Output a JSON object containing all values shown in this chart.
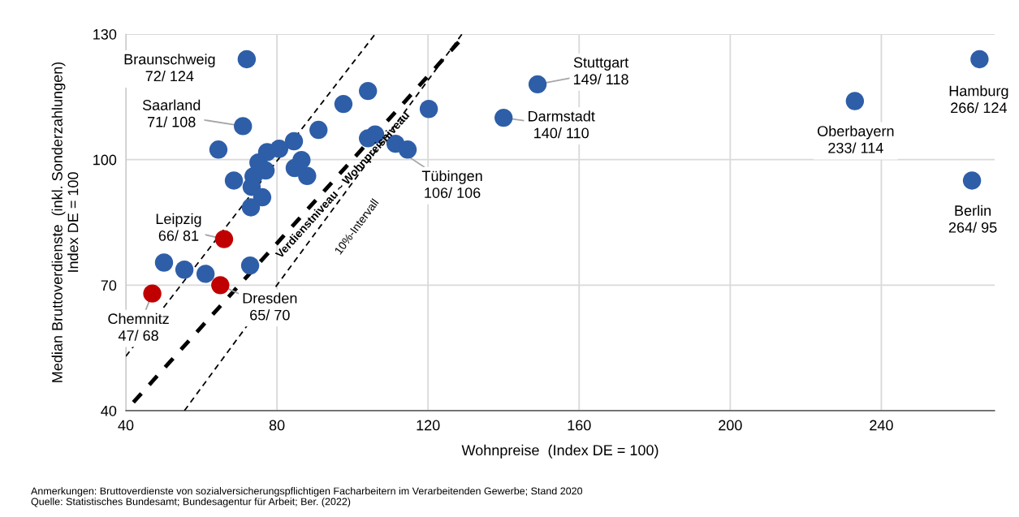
{
  "chart_data": {
    "type": "scatter",
    "xlabel": "Wohnpreise  (Index DE = 100)",
    "ylabel": "Median Bruttoverdienste  (inkl. Sonderzahlungen)\nIndex DE = 100",
    "xlim": [
      40,
      270
    ],
    "ylim": [
      40,
      130
    ],
    "xticks": [
      40,
      80,
      120,
      160,
      200,
      240
    ],
    "yticks": [
      40,
      70,
      100,
      130
    ],
    "grid": true,
    "marker": "circle",
    "series": [
      {
        "type": "scatter",
        "color": "#2e5ea8",
        "x": [
          72,
          71,
          106,
          149,
          140,
          233,
          266,
          264,
          104.1,
          97.6,
          120.2,
          91.0,
          84.5,
          80.6,
          77.4,
          64.5,
          104.1,
          111.4,
          114.6,
          75.1,
          86.5,
          84.7,
          88.0,
          77.0,
          73.8,
          68.6,
          73.3,
          76.1,
          73.1,
          50.1,
          55.5,
          61.1,
          72.9
        ],
        "values": [
          124,
          108,
          106,
          118,
          110,
          114,
          124,
          95,
          116.4,
          113.3,
          112.1,
          107.1,
          104.4,
          102.6,
          101.8,
          102.4,
          105.1,
          103.8,
          102.4,
          99.3,
          99.9,
          98.0,
          96.1,
          97.4,
          96.0,
          95.0,
          93.5,
          91.0,
          88.6,
          75.4,
          73.7,
          72.7,
          74.7
        ]
      },
      {
        "type": "scatter",
        "color": "#c00000",
        "x": [
          66,
          47,
          65
        ],
        "values": [
          81,
          68,
          70
        ]
      },
      {
        "type": "line",
        "marker": "none",
        "color": "#000000",
        "line_style": "dashed",
        "x": [
          42,
          130
        ],
        "values": [
          42,
          130
        ]
      },
      {
        "type": "line",
        "marker": "none",
        "color": "#000000",
        "line_style": "dashed",
        "x": [
          40,
          106
        ],
        "values": [
          53,
          130
        ]
      },
      {
        "type": "line",
        "marker": "none",
        "color": "#000000",
        "line_style": "dashed",
        "x": [
          55.5,
          129
        ],
        "values": [
          40,
          130
        ]
      }
    ],
    "annotations": [
      {
        "text": "Braunschweig\n72/ 124",
        "x": 72,
        "y": 124
      },
      {
        "text": "Saarland\n71/ 108",
        "x": 71,
        "y": 108
      },
      {
        "text": "Leipzig\n66/ 81",
        "x": 66,
        "y": 81
      },
      {
        "text": "Chemnitz\n47/ 68",
        "x": 47,
        "y": 68
      },
      {
        "text": "Dresden\n65/ 70",
        "x": 65,
        "y": 70
      },
      {
        "text": "Tübingen\n106/ 106",
        "x": 106,
        "y": 106
      },
      {
        "text": "Stuttgart\n149/ 118",
        "x": 149,
        "y": 118
      },
      {
        "text": "Darmstadt\n140/ 110",
        "x": 140,
        "y": 110
      },
      {
        "text": "Oberbayern\n233/ 114",
        "x": 233,
        "y": 114
      },
      {
        "text": "Hamburg\n266/ 124",
        "x": 266,
        "y": 124
      },
      {
        "text": "Berlin\n264/ 95",
        "x": 264,
        "y": 95
      },
      {
        "text": "Verdienstniveau ~ Wohnpreisniveau",
        "x": 95.6,
        "y": 95.6
      },
      "10%-Intervall",
      "Anmerkungen: Bruttoverdienste von sozialversicherungspflichtigen Facharbeitern im Verarbeitenden Gewerbe; Stand 2020",
      "Quelle: Statistisches Bundesamt; Bundesagentur für Arbeit; Ber. (2022)"
    ]
  }
}
